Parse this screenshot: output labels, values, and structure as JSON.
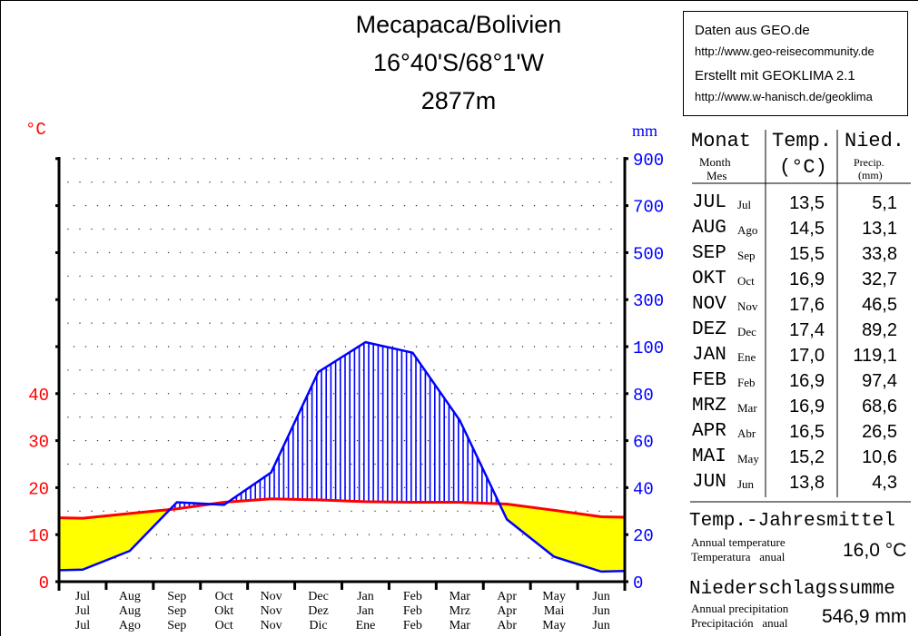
{
  "title": {
    "line1": "Mecapaca/Bolivien",
    "line2": "16°40'S/68°1'W",
    "line3": "2877m"
  },
  "info_box": {
    "line1": "Daten aus GEO.de",
    "line2": "http://www.geo-reisecommunity.de",
    "line3": "Erstellt mit GEOKLIMA 2.1",
    "line4": "http://www.w-hanisch.de/geoklima"
  },
  "colors": {
    "temperature": "#ff0000",
    "precipitation": "#0000ff",
    "arid": "#ffff00"
  },
  "chart_data": {
    "type": "line",
    "subtype": "climate-diagram",
    "left_unit": "°C",
    "right_unit": "mm",
    "left_ticks": [
      "0",
      "10",
      "20",
      "30",
      "40"
    ],
    "right_ticks": [
      "0",
      "20",
      "40",
      "60",
      "80",
      "100",
      "300",
      "500",
      "700",
      "900"
    ],
    "x_labels": [
      [
        "Jul",
        "Jul",
        "Jul"
      ],
      [
        "Aug",
        "Aug",
        "Ago"
      ],
      [
        "Sep",
        "Sep",
        "Sep"
      ],
      [
        "Oct",
        "Okt",
        "Oct"
      ],
      [
        "Nov",
        "Nov",
        "Nov"
      ],
      [
        "Dec",
        "Dez",
        "Dic"
      ],
      [
        "Jan",
        "Jan",
        "Ene"
      ],
      [
        "Feb",
        "Feb",
        "Feb"
      ],
      [
        "Mar",
        "Mrz",
        "Mar"
      ],
      [
        "Apr",
        "Apr",
        "Abr"
      ],
      [
        "May",
        "Mai",
        "May"
      ],
      [
        "Jun",
        "Jun",
        "Jun"
      ]
    ],
    "series": [
      {
        "name": "Temp.",
        "unit": "°C",
        "values": [
          13.5,
          14.5,
          15.5,
          16.9,
          17.6,
          17.4,
          17.0,
          16.9,
          16.9,
          16.5,
          15.2,
          13.8
        ]
      },
      {
        "name": "Nied.",
        "unit": "mm",
        "values": [
          5.1,
          13.1,
          33.8,
          32.7,
          46.5,
          89.2,
          119.1,
          97.4,
          68.6,
          26.5,
          10.6,
          4.3
        ]
      }
    ],
    "scale": "10 °C = 20 mm up to 100 mm; 200 mm per step above 100 mm",
    "grid": "dotted"
  },
  "table": {
    "head": {
      "month_de": "Monat",
      "month_en": "Month",
      "month_es": "Mes",
      "temp": "Temp.",
      "temp_unit": "(°C)",
      "precip": "Nied.",
      "precip_en": "Precip.",
      "precip_unit": "(mm)"
    },
    "rows": [
      {
        "de": "JUL",
        "es": "Jul",
        "t": "13,5",
        "p": "5,1"
      },
      {
        "de": "AUG",
        "es": "Ago",
        "t": "14,5",
        "p": "13,1"
      },
      {
        "de": "SEP",
        "es": "Sep",
        "t": "15,5",
        "p": "33,8"
      },
      {
        "de": "OKT",
        "es": "Oct",
        "t": "16,9",
        "p": "32,7"
      },
      {
        "de": "NOV",
        "es": "Nov",
        "t": "17,6",
        "p": "46,5"
      },
      {
        "de": "DEZ",
        "es": "Dec",
        "t": "17,4",
        "p": "89,2"
      },
      {
        "de": "JAN",
        "es": "Ene",
        "t": "17,0",
        "p": "119,1"
      },
      {
        "de": "FEB",
        "es": "Feb",
        "t": "16,9",
        "p": "97,4"
      },
      {
        "de": "MRZ",
        "es": "Mar",
        "t": "16,9",
        "p": "68,6"
      },
      {
        "de": "APR",
        "es": "Abr",
        "t": "16,5",
        "p": "26,5"
      },
      {
        "de": "MAI",
        "es": "May",
        "t": "15,2",
        "p": "10,6"
      },
      {
        "de": "JUN",
        "es": "Jun",
        "t": "13,8",
        "p": "4,3"
      }
    ]
  },
  "annual": {
    "temp_title": "Temp.-Jahresmittel",
    "temp_en": "Annual temperature",
    "temp_es": "Temperatura   anual",
    "temp_value": "16,0 °C",
    "precip_title": "Niederschlagssumme",
    "precip_en": "Annual precipitation",
    "precip_es": "Precipitación   anual",
    "precip_value": "546,9 mm"
  }
}
